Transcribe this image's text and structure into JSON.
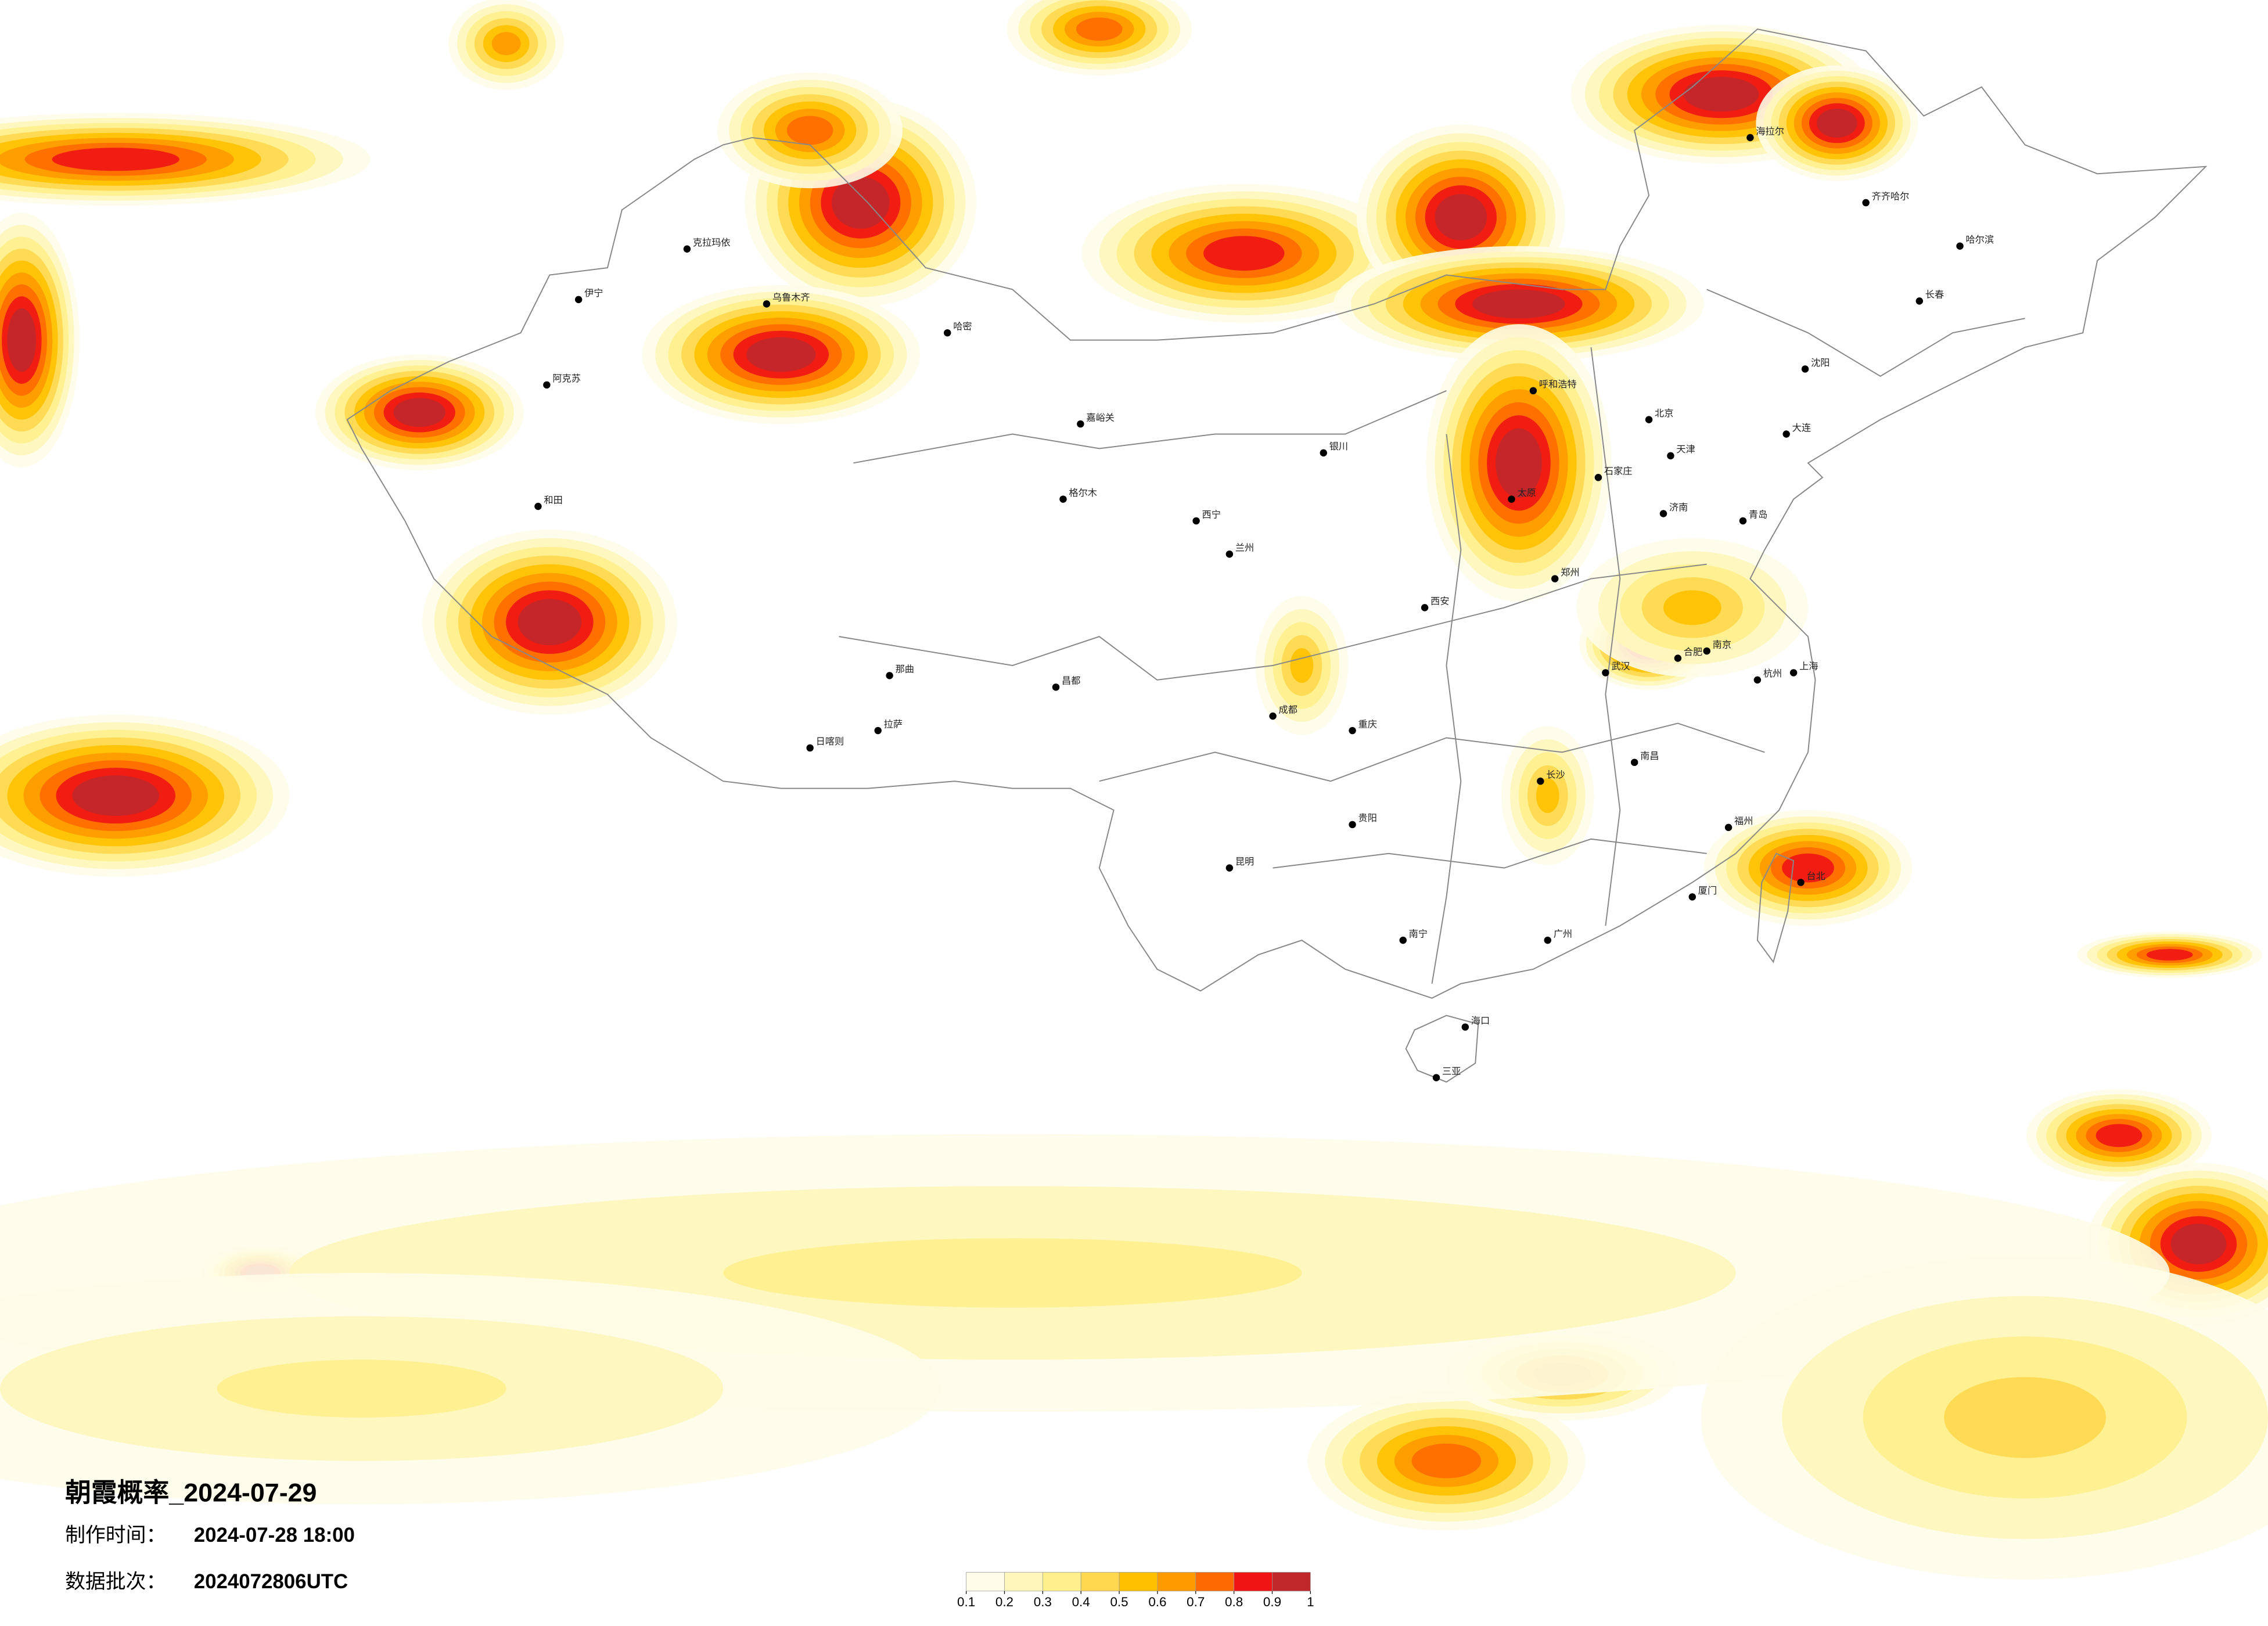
{
  "title": "朝霞概率_2024-07-29",
  "made_label": "制作时间：",
  "made_time": "2024-07-28 18:00",
  "batch_label": "数据批次：",
  "batch": "2024072806UTC",
  "legend": {
    "colors": [
      "#fefce8",
      "#fff6bb",
      "#fff08c",
      "#ffd84f",
      "#ffc000",
      "#ff9a00",
      "#ff6a00",
      "#f01414",
      "#c0282c"
    ],
    "ticks": [
      0.1,
      0.2,
      0.3,
      0.4,
      0.5,
      0.6,
      0.7,
      0.8,
      0.9,
      1
    ]
  },
  "cities": [
    "克拉玛依",
    "乌鲁木齐",
    "伊宁",
    "阿克苏",
    "和田",
    "哈密",
    "嘉峪关",
    "格尔木",
    "西宁",
    "兰州",
    "银川",
    "拉萨",
    "日喀则",
    "那曲",
    "昌都",
    "成都",
    "重庆",
    "贵阳",
    "昆明",
    "南宁",
    "广州",
    "长沙",
    "武汉",
    "南昌",
    "福州",
    "杭州",
    "南京",
    "上海",
    "合肥",
    "济南",
    "郑州",
    "西安",
    "太原",
    "呼和浩特",
    "北京",
    "石家庄",
    "沈阳",
    "长春",
    "哈尔滨",
    "齐齐哈尔",
    "海拉尔",
    "海口",
    "三亚",
    "台北",
    "厦门",
    "青岛",
    "大连",
    "天津"
  ]
}
